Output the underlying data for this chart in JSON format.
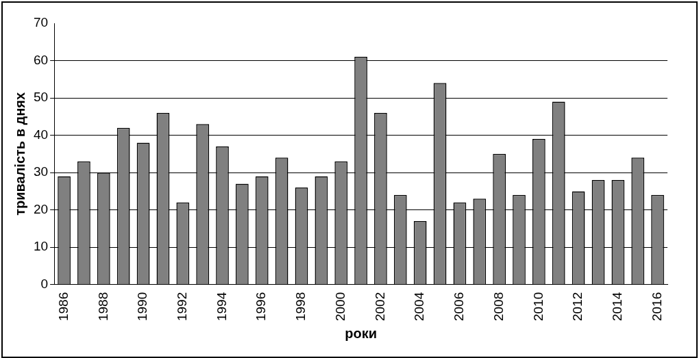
{
  "chart_data": {
    "type": "bar",
    "xlabel": "роки",
    "ylabel": "тривалість в днях",
    "categories": [
      "1986",
      null,
      "1988",
      null,
      "1990",
      null,
      "1992",
      null,
      "1994",
      null,
      "1996",
      null,
      "1998",
      null,
      "2000",
      null,
      "2002",
      null,
      "2004",
      null,
      "2006",
      null,
      "2008",
      null,
      "2010",
      null,
      "2012",
      null,
      "2014",
      null,
      "2016"
    ],
    "values": [
      29,
      33,
      30,
      42,
      38,
      46,
      22,
      43,
      37,
      27,
      29,
      34,
      26,
      29,
      33,
      61,
      46,
      24,
      17,
      54,
      22,
      23,
      35,
      24,
      39,
      49,
      25,
      28,
      28,
      34,
      24
    ],
    "color": "#808080",
    "ylim": [
      0,
      70
    ],
    "yticks": [
      0,
      10,
      20,
      30,
      40,
      50,
      60,
      70
    ],
    "grid": "y"
  }
}
